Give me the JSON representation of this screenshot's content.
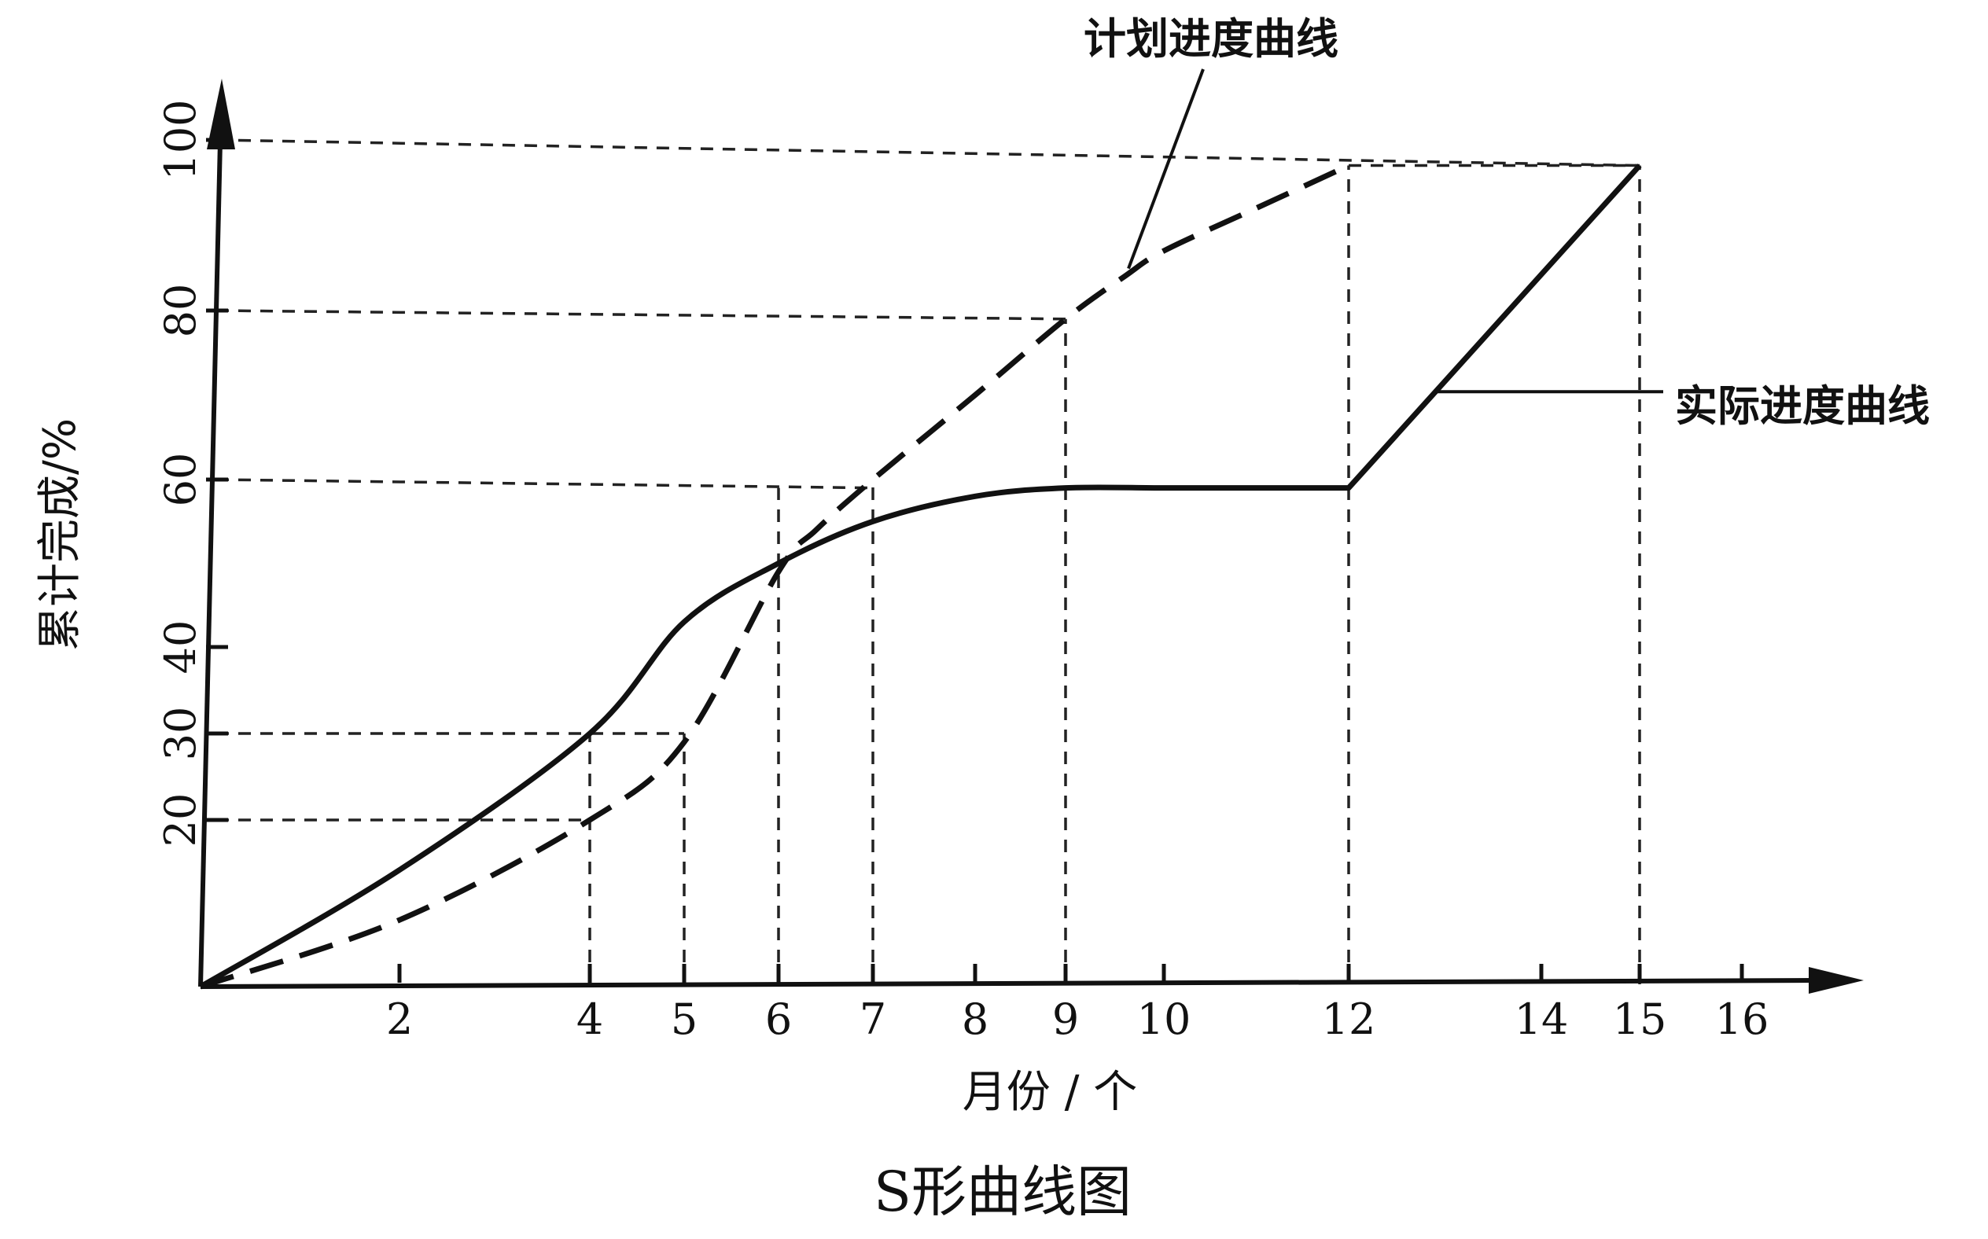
{
  "chart_data": {
    "type": "line",
    "title": "S形曲线图",
    "xlabel": "月份 / 个",
    "ylabel": "累计完成/%",
    "xlim": [
      0,
      17
    ],
    "ylim": [
      0,
      100
    ],
    "x_ticks": [
      2,
      4,
      5,
      6,
      7,
      8,
      9,
      10,
      12,
      14,
      15,
      16
    ],
    "y_ticks": [
      20,
      30,
      40,
      60,
      80,
      100
    ],
    "grid": false,
    "series": [
      {
        "name": "计划进度曲线",
        "style": "dashed",
        "x": [
          0,
          2,
          4,
          5,
          6,
          6.4,
          7,
          8,
          9,
          9.6,
          10,
          11,
          12
        ],
        "y": [
          0,
          8,
          20,
          29,
          49,
          54,
          60,
          70,
          79,
          84,
          87,
          92,
          97
        ]
      },
      {
        "name": "实际进度曲线",
        "style": "solid",
        "x": [
          0,
          2,
          4,
          5,
          6,
          7,
          8,
          9,
          10,
          11,
          12,
          15
        ],
        "y": [
          0,
          14,
          30,
          43,
          50,
          55,
          58,
          59,
          59,
          59,
          59,
          97
        ]
      }
    ],
    "reference_lines": [
      {
        "type": "h",
        "y": 100,
        "x_from": 0,
        "x_to": 15,
        "to_y": 97
      },
      {
        "type": "h",
        "y": 97,
        "x_from": 12,
        "x_to": 15
      },
      {
        "type": "h",
        "y": 80,
        "x_from": 0,
        "x_to": 9,
        "to_y": 79
      },
      {
        "type": "h",
        "y": 60,
        "x_from": 0,
        "x_to": 7,
        "to_y": 59
      },
      {
        "type": "h",
        "y": 30,
        "x_from": 0,
        "x_to": 5
      },
      {
        "type": "h",
        "y": 20,
        "x_from": 0,
        "x_to": 4
      },
      {
        "type": "v",
        "x": 4,
        "y_to": 30
      },
      {
        "type": "v",
        "x": 5,
        "y_to": 30
      },
      {
        "type": "v",
        "x": 6,
        "y_to": 59
      },
      {
        "type": "v",
        "x": 7,
        "y_to": 60
      },
      {
        "type": "v",
        "x": 9,
        "y_to": 79
      },
      {
        "type": "v",
        "x": 12,
        "y_to": 97
      },
      {
        "type": "v",
        "x": 15,
        "y_to": 97
      }
    ]
  }
}
